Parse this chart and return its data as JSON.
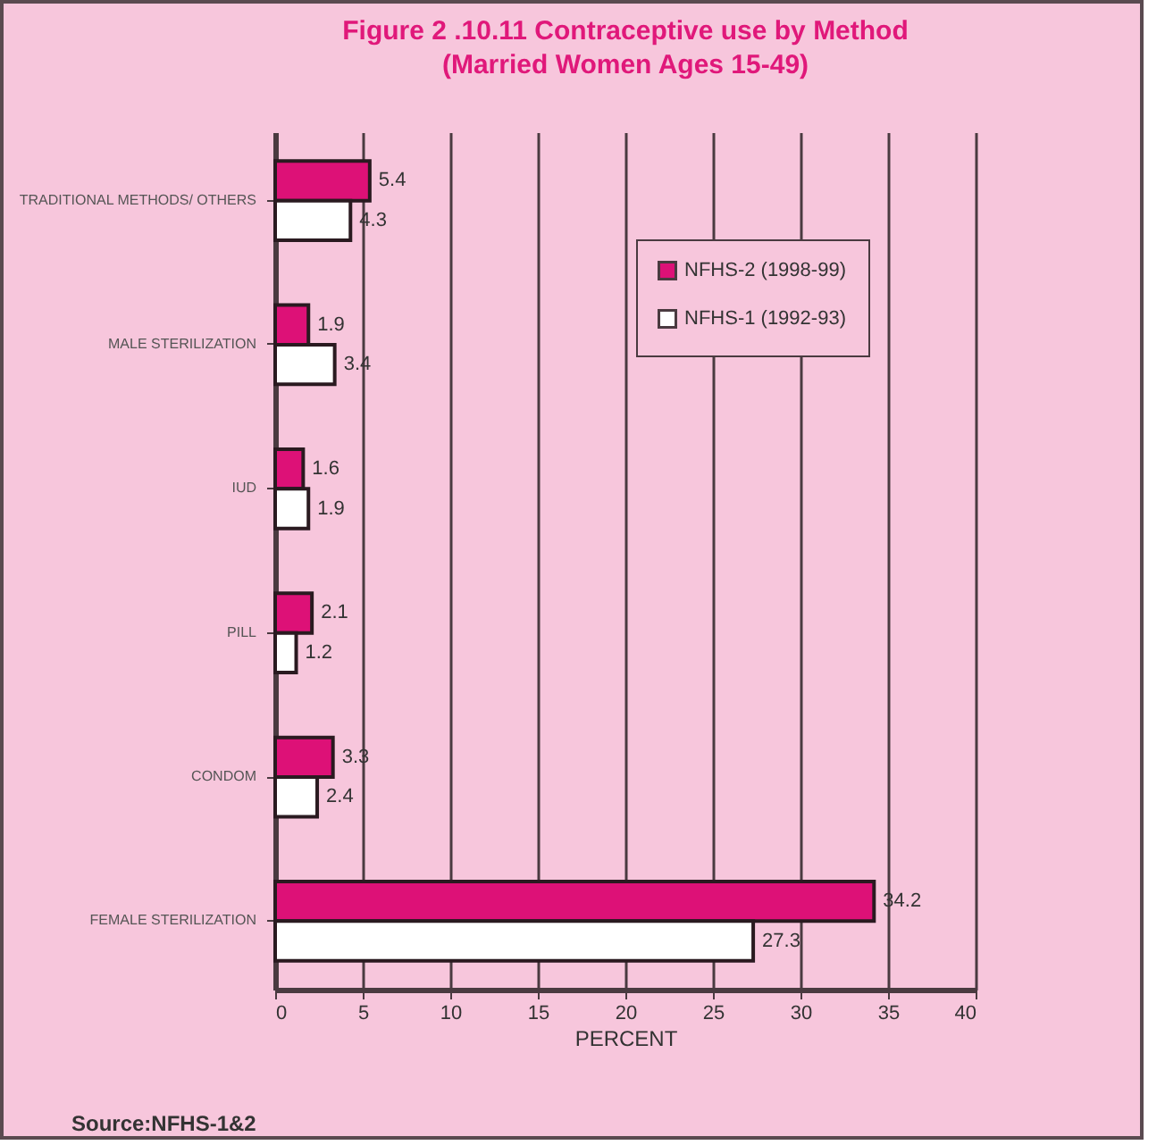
{
  "chart_data": {
    "type": "bar",
    "orientation": "horizontal",
    "title": "Figure 2 .10.11 Contraceptive use by Method",
    "subtitle": "(Married Women Ages 15-49)",
    "xlabel": "PERCENT",
    "categories": [
      "TRADITIONAL METHODS/ OTHERS",
      "MALE STERILIZATION",
      "IUD",
      "PILL",
      "CONDOM",
      "FEMALE STERILIZATION"
    ],
    "series": [
      {
        "name": "NFHS-2 (1998-99)",
        "color": "#dd1177",
        "values": [
          5.4,
          1.9,
          1.6,
          2.1,
          3.3,
          34.2
        ]
      },
      {
        "name": "NFHS-1 (1992-93)",
        "color": "#ffffff",
        "values": [
          4.3,
          3.4,
          1.9,
          1.2,
          2.4,
          27.3
        ]
      }
    ],
    "xlim": [
      0,
      40
    ],
    "xticks": [
      0,
      5,
      10,
      15,
      20,
      25,
      30,
      35,
      40
    ],
    "grid": "x",
    "legend": "top right",
    "data_labels": true,
    "annotations": [
      "Source:NFHS-1&2"
    ]
  }
}
